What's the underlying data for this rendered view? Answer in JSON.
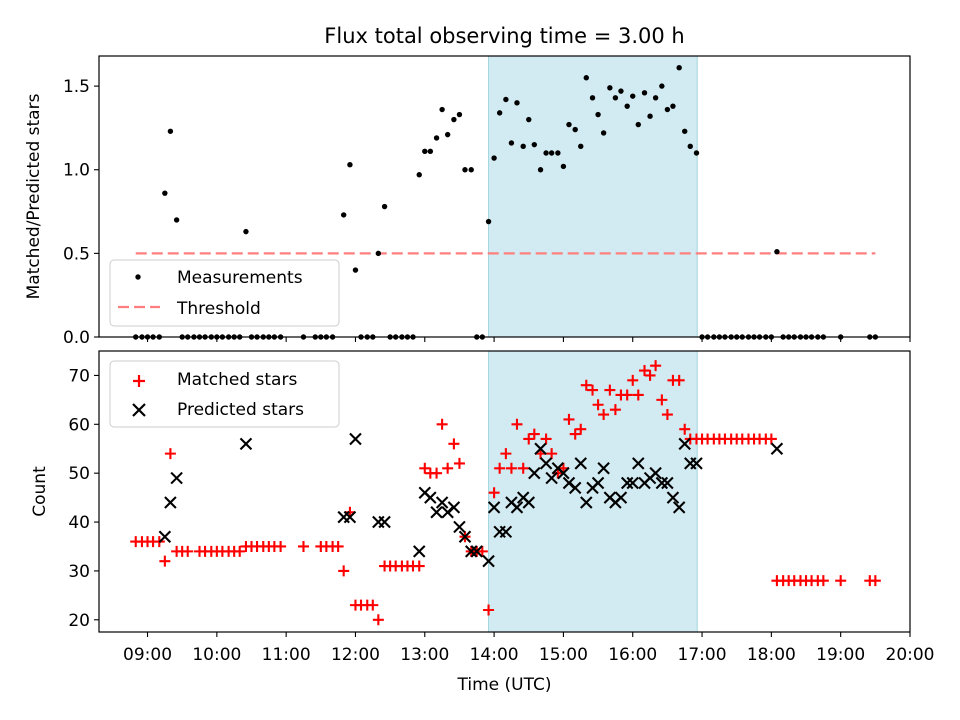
{
  "chart_data": [
    {
      "type": "scatter",
      "title": "Flux total observing time = 3.00 h",
      "xlabel": "",
      "ylabel": "Matched/Predicted stars",
      "x_unit": "hours UTC",
      "xlim": [
        8.3,
        20.0
      ],
      "ylim": [
        0.0,
        1.68
      ],
      "yticks": [
        0.0,
        0.5,
        1.0,
        1.5
      ],
      "ytick_labels": [
        "0.0",
        "0.5",
        "1.0",
        "1.5"
      ],
      "highlight_span": [
        13.92,
        16.93
      ],
      "highlight_color": "#add8e6",
      "legend_location": "lower left",
      "legend": [
        "Measurements",
        "Threshold"
      ],
      "threshold": {
        "name": "Threshold",
        "value": 0.5,
        "x_range": [
          8.83,
          19.5
        ],
        "color": "#ff7f7f"
      },
      "series": [
        {
          "name": "Measurements",
          "marker": "dot",
          "color": "#000000",
          "x": [
            8.83,
            8.92,
            9.0,
            9.08,
            9.17,
            9.25,
            9.33,
            9.42,
            9.5,
            9.58,
            9.67,
            9.75,
            9.83,
            9.92,
            10.0,
            10.08,
            10.17,
            10.25,
            10.33,
            10.42,
            10.5,
            10.58,
            10.67,
            10.75,
            10.83,
            10.92,
            11.25,
            11.42,
            11.5,
            11.58,
            11.67,
            11.83,
            11.92,
            12.0,
            12.08,
            12.17,
            12.25,
            12.33,
            12.42,
            12.5,
            12.58,
            12.67,
            12.75,
            12.83,
            12.92,
            13.0,
            13.08,
            13.17,
            13.25,
            13.33,
            13.42,
            13.5,
            13.58,
            13.67,
            13.75,
            13.83,
            13.92,
            14.0,
            14.08,
            14.17,
            14.25,
            14.33,
            14.42,
            14.5,
            14.58,
            14.67,
            14.75,
            14.83,
            14.92,
            15.0,
            15.08,
            15.17,
            15.25,
            15.33,
            15.42,
            15.5,
            15.58,
            15.67,
            15.75,
            15.83,
            15.92,
            16.0,
            16.08,
            16.17,
            16.25,
            16.33,
            16.42,
            16.5,
            16.58,
            16.67,
            16.75,
            16.83,
            16.92,
            17.0,
            17.08,
            17.17,
            17.25,
            17.33,
            17.42,
            17.5,
            17.58,
            17.67,
            17.75,
            17.83,
            17.92,
            18.0,
            18.08,
            18.17,
            18.25,
            18.33,
            18.42,
            18.5,
            18.58,
            18.67,
            18.75,
            19.0,
            19.42,
            19.5
          ],
          "y": [
            0,
            0,
            0,
            0,
            0,
            0.86,
            1.23,
            0.7,
            0,
            0,
            0,
            0,
            0,
            0,
            0,
            0,
            0,
            0,
            0,
            0.63,
            0,
            0,
            0,
            0,
            0,
            0,
            0,
            0,
            0,
            0,
            0,
            0.73,
            1.03,
            0.4,
            0,
            0,
            0,
            0.5,
            0.78,
            0,
            0,
            0,
            0,
            0,
            0.97,
            1.11,
            1.11,
            1.19,
            1.36,
            1.21,
            1.3,
            1.33,
            1.0,
            1.0,
            0,
            0,
            0.69,
            1.07,
            1.34,
            1.42,
            1.16,
            1.4,
            1.14,
            1.3,
            1.15,
            1.0,
            1.1,
            1.1,
            1.1,
            1.02,
            1.27,
            1.24,
            1.14,
            1.55,
            1.43,
            1.33,
            1.22,
            1.49,
            1.43,
            1.47,
            1.38,
            1.44,
            1.27,
            1.46,
            1.32,
            1.43,
            1.5,
            1.36,
            1.38,
            1.61,
            1.23,
            1.14,
            1.1,
            0,
            0,
            0,
            0,
            0,
            0,
            0,
            0,
            0,
            0,
            0,
            0,
            0,
            0.51,
            0,
            0,
            0,
            0,
            0,
            0,
            0,
            0,
            0,
            0,
            0
          ]
        }
      ]
    },
    {
      "type": "scatter",
      "title": "",
      "xlabel": "Time (UTC)",
      "ylabel": "Count",
      "x_unit": "hours UTC",
      "xlim": [
        8.3,
        20.0
      ],
      "ylim": [
        17.5,
        75
      ],
      "xticks": [
        9,
        10,
        11,
        12,
        13,
        14,
        15,
        16,
        17,
        18,
        19,
        20
      ],
      "xtick_labels": [
        "09:00",
        "10:00",
        "11:00",
        "12:00",
        "13:00",
        "14:00",
        "15:00",
        "16:00",
        "17:00",
        "18:00",
        "19:00",
        "20:00"
      ],
      "yticks": [
        20,
        30,
        40,
        50,
        60,
        70
      ],
      "ytick_labels": [
        "20",
        "30",
        "40",
        "50",
        "60",
        "70"
      ],
      "highlight_span": [
        13.92,
        16.93
      ],
      "highlight_color": "#add8e6",
      "legend_location": "upper left",
      "legend": [
        "Matched stars",
        "Predicted stars"
      ],
      "series": [
        {
          "name": "Matched stars",
          "marker": "plus",
          "color": "#ff0000",
          "x": [
            8.83,
            8.92,
            9.0,
            9.08,
            9.17,
            9.25,
            9.33,
            9.42,
            9.5,
            9.58,
            9.75,
            9.83,
            9.92,
            10.0,
            10.08,
            10.17,
            10.25,
            10.33,
            10.42,
            10.5,
            10.58,
            10.67,
            10.75,
            10.83,
            10.92,
            11.25,
            11.5,
            11.58,
            11.67,
            11.75,
            11.83,
            11.92,
            12.0,
            12.08,
            12.17,
            12.25,
            12.33,
            12.42,
            12.5,
            12.58,
            12.67,
            12.75,
            12.83,
            12.92,
            13.0,
            13.08,
            13.17,
            13.25,
            13.33,
            13.42,
            13.5,
            13.58,
            13.67,
            13.75,
            13.83,
            13.92,
            14.0,
            14.08,
            14.17,
            14.25,
            14.33,
            14.42,
            14.5,
            14.58,
            14.67,
            14.75,
            14.83,
            14.92,
            15.0,
            15.08,
            15.17,
            15.25,
            15.33,
            15.42,
            15.5,
            15.58,
            15.67,
            15.75,
            15.83,
            15.92,
            16.0,
            16.08,
            16.17,
            16.25,
            16.33,
            16.42,
            16.5,
            16.58,
            16.67,
            16.75,
            16.83,
            16.92,
            17.0,
            17.08,
            17.17,
            17.25,
            17.33,
            17.42,
            17.5,
            17.58,
            17.67,
            17.75,
            17.83,
            17.92,
            18.0,
            18.08,
            18.17,
            18.25,
            18.33,
            18.42,
            18.5,
            18.58,
            18.67,
            18.75,
            19.0,
            19.42,
            19.5
          ],
          "y": [
            36,
            36,
            36,
            36,
            36,
            32,
            54,
            34,
            34,
            34,
            34,
            34,
            34,
            34,
            34,
            34,
            34,
            34,
            35,
            35,
            35,
            35,
            35,
            35,
            35,
            35,
            35,
            35,
            35,
            35,
            30,
            42,
            23,
            23,
            23,
            23,
            20,
            31,
            31,
            31,
            31,
            31,
            31,
            31,
            51,
            50,
            50,
            60,
            51,
            56,
            52,
            37,
            34,
            34,
            34,
            22,
            46,
            51,
            54,
            51,
            60,
            51,
            57,
            58,
            54,
            57,
            54,
            50,
            51,
            61,
            58,
            59,
            68,
            67,
            64,
            62,
            67,
            63,
            66,
            66,
            69,
            66,
            71,
            70,
            72,
            65,
            62,
            69,
            69,
            59,
            57,
            57,
            57,
            57,
            57,
            57,
            57,
            57,
            57,
            57,
            57,
            57,
            57,
            57,
            57,
            28,
            28,
            28,
            28,
            28,
            28,
            28,
            28,
            28,
            28,
            28,
            28
          ]
        },
        {
          "name": "Predicted stars",
          "marker": "x",
          "color": "#000000",
          "x": [
            9.25,
            9.33,
            9.42,
            10.42,
            11.83,
            11.92,
            12.0,
            12.33,
            12.42,
            12.92,
            13.0,
            13.08,
            13.17,
            13.25,
            13.33,
            13.42,
            13.5,
            13.58,
            13.67,
            13.75,
            13.92,
            14.0,
            14.08,
            14.17,
            14.25,
            14.33,
            14.42,
            14.5,
            14.58,
            14.67,
            14.75,
            14.83,
            14.92,
            15.0,
            15.08,
            15.17,
            15.25,
            15.33,
            15.42,
            15.5,
            15.58,
            15.67,
            15.75,
            15.83,
            15.92,
            16.0,
            16.08,
            16.17,
            16.25,
            16.33,
            16.42,
            16.5,
            16.58,
            16.67,
            16.75,
            16.83,
            16.92,
            18.08
          ],
          "y": [
            37,
            44,
            49,
            56,
            41,
            41,
            57,
            40,
            40,
            34,
            46,
            45,
            42,
            44,
            42,
            43,
            39,
            37,
            34,
            34,
            32,
            43,
            38,
            38,
            44,
            43,
            45,
            44,
            50,
            55,
            52,
            49,
            51,
            50,
            48,
            47,
            52,
            44,
            47,
            48,
            51,
            45,
            44,
            45,
            48,
            48,
            52,
            48,
            49,
            50,
            48,
            48,
            45,
            43,
            56,
            52,
            52,
            55
          ]
        }
      ]
    }
  ]
}
